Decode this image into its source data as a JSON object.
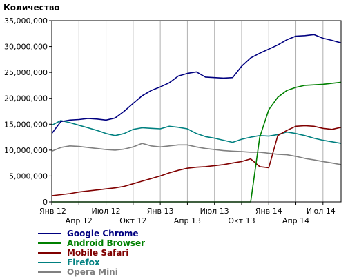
{
  "chart_data": {
    "type": "line",
    "title": "",
    "ylabel": "Количество",
    "xlabel": "",
    "ylim": [
      0,
      35000000
    ],
    "yticks": [
      0,
      5000000,
      10000000,
      15000000,
      20000000,
      25000000,
      30000000,
      35000000
    ],
    "ytick_labels": [
      "0",
      "5,000,000",
      "10,000,000",
      "15,000,000",
      "20,000,000",
      "25,000,000",
      "30,000,000",
      "35,000,000"
    ],
    "x_start": "2012-01",
    "xtick_labels_upper": [
      "Янв 12",
      "Июл 12",
      "Янв 13",
      "Июл 13",
      "Янв 14",
      "Июл 14"
    ],
    "xtick_labels_lower": [
      "Апр 12",
      "Окт 12",
      "Апр 13",
      "Окт 13",
      "Апр 14"
    ],
    "grid": "vertical",
    "legend_placement": "bottom-left",
    "series": [
      {
        "name": "Google Chrome",
        "color": "#000080",
        "values": [
          13.2,
          15.5,
          15.8,
          15.9,
          16.1,
          16.0,
          15.8,
          16.2,
          17.5,
          19.0,
          20.5,
          21.5,
          22.2,
          23.0,
          24.3,
          24.8,
          25.1,
          24.1,
          24.0,
          23.9,
          24.0,
          26.2,
          27.8,
          28.7,
          29.5,
          30.3,
          31.3,
          32.0,
          32.1,
          32.3,
          31.6,
          31.2,
          30.7
        ]
      },
      {
        "name": "Android Browser",
        "color": "#008000",
        "values": [
          0,
          0,
          0,
          0,
          0,
          0,
          0,
          0,
          0,
          0,
          0,
          0,
          0,
          0,
          0,
          0,
          0,
          0,
          0,
          0,
          0,
          0,
          0,
          12.5,
          17.8,
          20.2,
          21.5,
          22.1,
          22.5,
          22.6,
          22.7,
          22.9,
          23.1
        ]
      },
      {
        "name": "Mobile Safari",
        "color": "#800000",
        "values": [
          1.2,
          1.4,
          1.6,
          1.9,
          2.1,
          2.3,
          2.5,
          2.7,
          3.0,
          3.5,
          4.0,
          4.5,
          5.0,
          5.6,
          6.1,
          6.5,
          6.7,
          6.8,
          7.0,
          7.2,
          7.5,
          7.8,
          8.3,
          6.8,
          6.6,
          12.8,
          13.8,
          14.6,
          14.7,
          14.6,
          14.2,
          14.0,
          14.4
        ]
      },
      {
        "name": "Firefox",
        "color": "#008080",
        "values": [
          14.8,
          15.7,
          15.3,
          14.8,
          14.3,
          13.8,
          13.2,
          12.8,
          13.2,
          14.0,
          14.3,
          14.2,
          14.1,
          14.6,
          14.4,
          14.1,
          13.2,
          12.6,
          12.3,
          11.9,
          11.5,
          12.1,
          12.5,
          12.8,
          12.7,
          13.0,
          13.5,
          13.2,
          12.8,
          12.3,
          11.9,
          11.6,
          11.3
        ]
      },
      {
        "name": "Opera Mini",
        "color": "#808080",
        "values": [
          9.8,
          10.5,
          10.8,
          10.7,
          10.5,
          10.3,
          10.1,
          10.0,
          10.2,
          10.6,
          11.3,
          10.8,
          10.6,
          10.8,
          11.0,
          11.0,
          10.6,
          10.3,
          10.1,
          9.9,
          9.8,
          9.7,
          9.6,
          9.6,
          9.4,
          9.2,
          9.1,
          8.8,
          8.4,
          8.1,
          7.8,
          7.5,
          7.2
        ]
      }
    ],
    "values_unit_multiplier": 1000000
  }
}
